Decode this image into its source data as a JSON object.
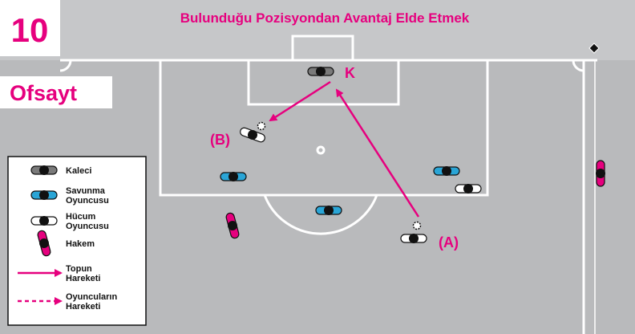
{
  "header": {
    "number": "10",
    "title": "Bulunduğu Pozisyondan Avantaj Elde Etmek",
    "topic": "Ofsayt"
  },
  "labels": {
    "goalkeeper": "K",
    "player_b": "(B)",
    "player_a": "(A)"
  },
  "legend": [
    {
      "label": [
        "Kaleci"
      ]
    },
    {
      "label": [
        "Savunma",
        "Oyuncusu"
      ]
    },
    {
      "label": [
        "Hücum",
        "Oyuncusu"
      ]
    },
    {
      "label": [
        "Hakem"
      ]
    },
    {
      "label": [
        "Topun",
        "Hareketi"
      ]
    },
    {
      "label": [
        "Oyuncuların",
        "Hareketi"
      ]
    }
  ]
}
